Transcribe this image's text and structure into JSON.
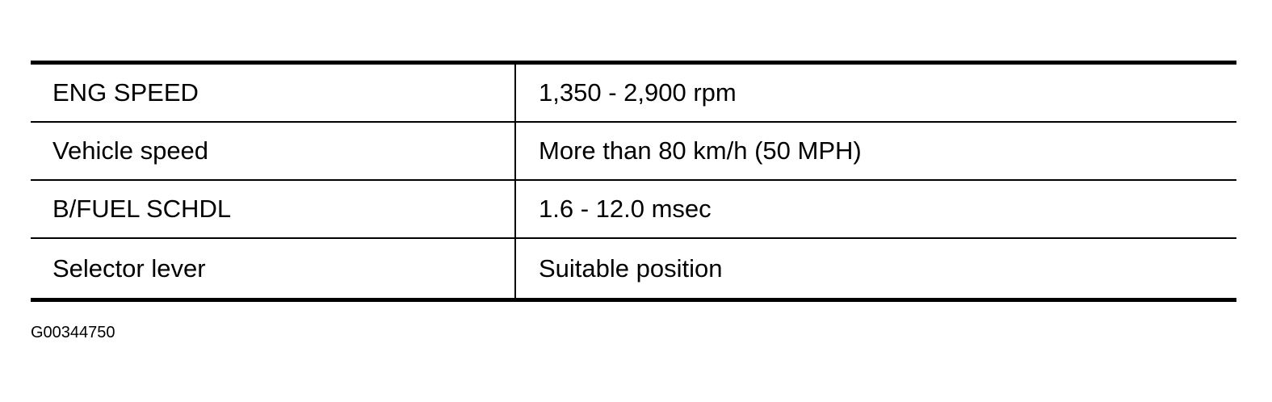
{
  "table": {
    "rows": [
      {
        "item": "ENG SPEED",
        "condition": "1,350 - 2,900 rpm"
      },
      {
        "item": "Vehicle speed",
        "condition": "More than 80 km/h (50 MPH)"
      },
      {
        "item": "B/FUEL SCHDL",
        "condition": "1.6 - 12.0 msec"
      },
      {
        "item": "Selector lever",
        "condition": "Suitable position"
      }
    ]
  },
  "caption": "G00344750"
}
